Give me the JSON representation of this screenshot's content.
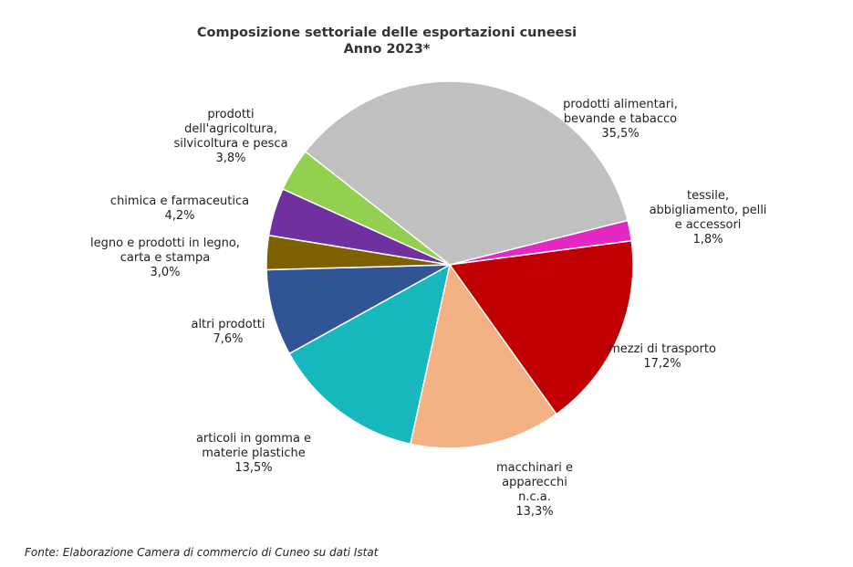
{
  "chart_data": {
    "type": "pie",
    "title": "Composizione settoriale delle esportazioni cuneesi",
    "subtitle": "Anno 2023*",
    "unit": "%",
    "slices": [
      {
        "label": "tessile,\nabbigliamento, pelli\ne accessori",
        "value": 1.8,
        "value_label": "1,8%",
        "color": "#e428c4"
      },
      {
        "label": "mezzi di trasporto",
        "value": 17.2,
        "value_label": "17,2%",
        "color": "#c00000"
      },
      {
        "label": "macchinari e\napparecchi\nn.c.a.",
        "value": 13.3,
        "value_label": "13,3%",
        "color": "#f4b183"
      },
      {
        "label": "articoli in gomma e\nmaterie plastiche",
        "value": 13.5,
        "value_label": "13,5%",
        "color": "#17b8bd"
      },
      {
        "label": "altri prodotti",
        "value": 7.6,
        "value_label": "7,6%",
        "color": "#2f5597"
      },
      {
        "label": "legno e prodotti in legno,\ncarta e stampa",
        "value": 3.0,
        "value_label": "3,0%",
        "color": "#7f6000"
      },
      {
        "label": "chimica e farmaceutica",
        "value": 4.2,
        "value_label": "4,2%",
        "color": "#7030a0"
      },
      {
        "label": "prodotti\ndell'agricoltura,\nsilvicoltura e pesca",
        "value": 3.8,
        "value_label": "3,8%",
        "color": "#92d050"
      },
      {
        "label": "prodotti alimentari,\nbevande e tabacco",
        "value": 35.5,
        "value_label": "35,5%",
        "color": "#c0c0c0"
      }
    ]
  },
  "source": "Fonte: Elaborazione Camera di commercio di Cuneo su dati Istat"
}
